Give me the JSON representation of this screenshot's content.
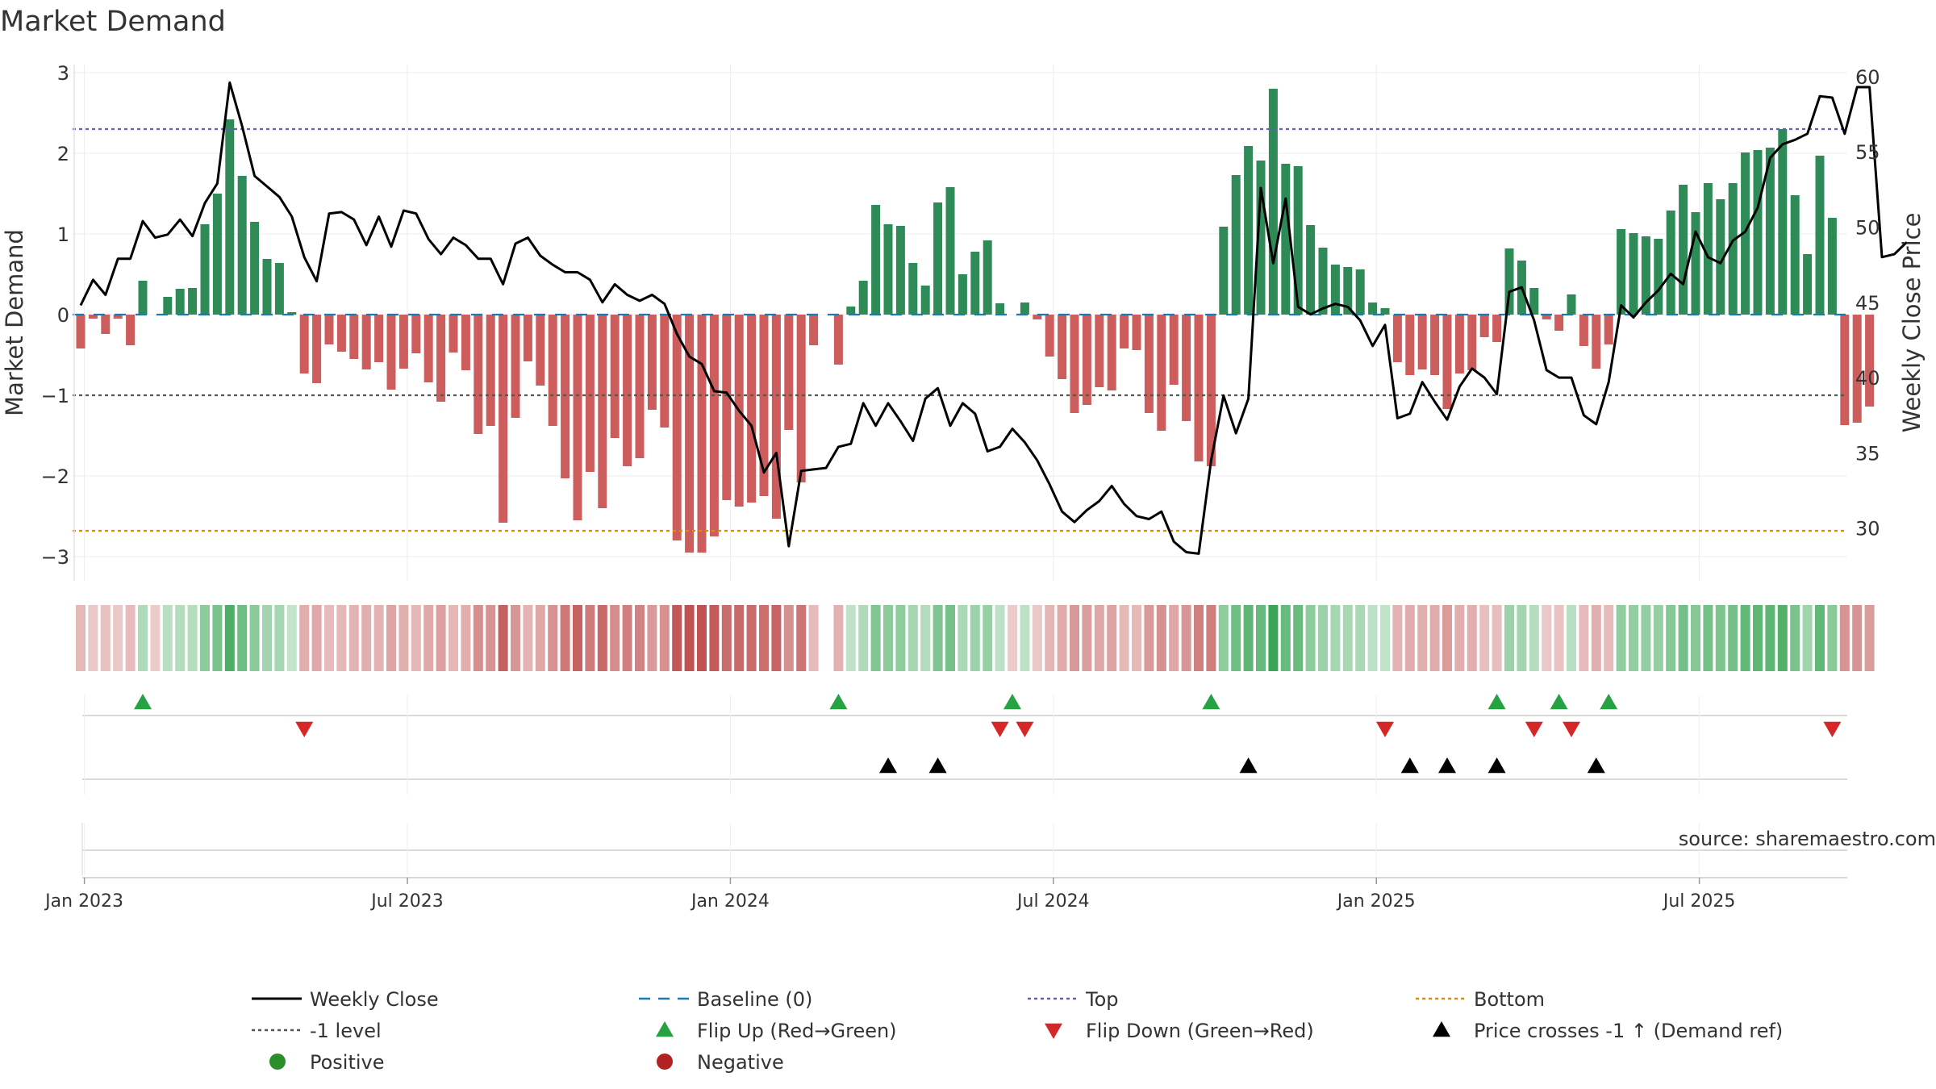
{
  "title": "Market Demand",
  "source": "source: sharemaestro.com",
  "chart_data": {
    "type": "bar+line",
    "title": "Market Demand",
    "ylabel_left": "Market Demand",
    "ylabel_right": "Weekly Close Price",
    "ylim_left": [
      -3.3,
      3.1
    ],
    "ylim_right": [
      26.5,
      60.8
    ],
    "yticks_left": [
      3,
      2,
      1,
      0,
      -1,
      -2,
      -3
    ],
    "ytick_labels_left": [
      "3",
      "2",
      "1",
      "0",
      "−1",
      "−2",
      "−3"
    ],
    "yticks_right": [
      60,
      55,
      50,
      45,
      40,
      35,
      30
    ],
    "ytick_labels_right": [
      "60",
      "55",
      "50",
      "45",
      "40",
      "35",
      "30"
    ],
    "xtick_labels": [
      "Jan 2023",
      "Jul 2023",
      "Jan 2024",
      "Jul 2024",
      "Jan 2025",
      "Jul 2025"
    ],
    "xtick_weeks": [
      0.3,
      26.3,
      52.3,
      78.3,
      104.3,
      130.3
    ],
    "levels": {
      "baseline": 0,
      "top": 2.3,
      "minus_one": -1,
      "bottom": -2.68
    },
    "colors": {
      "positive_bar": "#2e8b57",
      "negative_bar": "#cd5c5c",
      "price_line": "#000000",
      "baseline": "#1f77b4",
      "top": "#6a5acd",
      "minus_one": "#555555",
      "bottom": "#e08a00",
      "flip_up": "#27a243",
      "flip_down": "#d62728",
      "cross": "#000000",
      "positive_dot": "#2a8f2a",
      "negative_dot": "#b22222"
    },
    "demand": [
      -0.42,
      -0.05,
      -0.24,
      -0.05,
      -0.38,
      0.42,
      0.0,
      0.22,
      0.32,
      0.33,
      1.12,
      1.5,
      2.42,
      1.72,
      1.15,
      0.69,
      0.64,
      0.03,
      -0.73,
      -0.85,
      -0.37,
      -0.46,
      -0.55,
      -0.68,
      -0.59,
      -0.93,
      -0.67,
      -0.48,
      -0.84,
      -1.08,
      -0.47,
      -0.69,
      -1.48,
      -1.38,
      -2.58,
      -1.28,
      -0.58,
      -0.88,
      -1.38,
      -2.03,
      -2.55,
      -1.95,
      -2.4,
      -1.53,
      -1.88,
      -1.78,
      -1.18,
      -1.4,
      -2.8,
      -2.95,
      -2.95,
      -2.75,
      -2.3,
      -2.38,
      -2.33,
      -2.25,
      -2.53,
      -1.43,
      -2.08,
      -0.38,
      null,
      -0.62,
      0.1,
      0.42,
      1.36,
      1.12,
      1.1,
      0.64,
      0.36,
      1.39,
      1.58,
      0.5,
      0.78,
      0.92,
      0.14,
      0.0,
      0.15,
      -0.06,
      -0.52,
      -0.8,
      -1.22,
      -1.12,
      -0.9,
      -0.94,
      -0.42,
      -0.44,
      -1.22,
      -1.44,
      -0.87,
      -1.32,
      -1.82,
      -1.88,
      1.09,
      1.73,
      2.09,
      1.91,
      2.8,
      1.87,
      1.84,
      1.11,
      0.83,
      0.62,
      0.59,
      0.56,
      0.15,
      0.08,
      -0.59,
      -0.75,
      -0.68,
      -0.75,
      -1.17,
      -0.73,
      -0.69,
      -0.28,
      -0.34,
      0.82,
      0.67,
      0.33,
      -0.06,
      -0.2,
      0.25,
      -0.39,
      -0.67,
      -0.37,
      1.06,
      1.01,
      0.97,
      0.94,
      1.29,
      1.61,
      1.27,
      1.63,
      1.43,
      1.63,
      2.01,
      2.04,
      2.07,
      2.3,
      1.48,
      0.75,
      1.97,
      1.2,
      -1.37,
      -1.34,
      -1.14
    ],
    "close": [
      44.8,
      46.5,
      45.5,
      47.9,
      47.9,
      50.4,
      49.3,
      49.5,
      50.5,
      49.4,
      51.6,
      52.9,
      59.6,
      56.7,
      53.4,
      52.7,
      52.0,
      50.7,
      48.0,
      46.4,
      50.9,
      51.0,
      50.5,
      48.8,
      50.7,
      48.7,
      51.1,
      50.9,
      49.2,
      48.2,
      49.3,
      48.8,
      47.9,
      47.9,
      46.2,
      48.9,
      49.3,
      48.1,
      47.5,
      47.0,
      47.0,
      46.5,
      45.0,
      46.2,
      45.5,
      45.1,
      45.5,
      44.9,
      42.9,
      41.4,
      40.9,
      39.1,
      39.0,
      37.8,
      36.8,
      33.7,
      35.0,
      28.8,
      33.8,
      33.9,
      34.0,
      35.4,
      35.6,
      38.3,
      36.8,
      38.3,
      37.1,
      35.8,
      38.6,
      39.3,
      36.8,
      38.3,
      37.6,
      35.1,
      35.4,
      36.6,
      35.7,
      34.5,
      32.9,
      31.1,
      30.4,
      31.2,
      31.8,
      32.8,
      31.6,
      30.8,
      30.6,
      31.1,
      29.1,
      28.4,
      28.3,
      34.5,
      38.8,
      36.3,
      38.6,
      52.6,
      47.6,
      51.9,
      44.7,
      44.2,
      44.6,
      44.9,
      44.7,
      43.8,
      42.1,
      43.5,
      37.3,
      37.6,
      39.7,
      38.4,
      37.2,
      39.4,
      40.6,
      40.0,
      38.9,
      45.7,
      46.0,
      43.8,
      40.5,
      40.0,
      40.0,
      37.5,
      36.9,
      39.7,
      44.8,
      44.0,
      45.0,
      45.8,
      46.9,
      46.2,
      49.7,
      48.0,
      47.6,
      49.1,
      49.7,
      51.3,
      54.6,
      55.5,
      55.8,
      56.2,
      58.7,
      58.6,
      56.2,
      59.3,
      59.3,
      48.0,
      48.2,
      49.0
    ],
    "flip_up_weeks": [
      5,
      61,
      75,
      91,
      114,
      119,
      123
    ],
    "flip_down_weeks": [
      18,
      74,
      76,
      105,
      117,
      120,
      141
    ],
    "cross_weeks": [
      65,
      69,
      94,
      107,
      110,
      114,
      122
    ]
  },
  "legend": [
    {
      "key": "close",
      "label": "Weekly Close",
      "symbol": "line-solid",
      "color": "#000000"
    },
    {
      "key": "baseline",
      "label": "Baseline (0)",
      "symbol": "line-dash",
      "color": "#1f77b4"
    },
    {
      "key": "top",
      "label": "Top",
      "symbol": "line-dot",
      "color": "#6a5acd"
    },
    {
      "key": "bottom",
      "label": "Bottom",
      "symbol": "line-dot",
      "color": "#e08a00"
    },
    {
      "key": "minus_one",
      "label": "-1 level",
      "symbol": "line-dot",
      "color": "#555555"
    },
    {
      "key": "flip_up",
      "label": "Flip Up (Red→Green)",
      "symbol": "triangle-up",
      "color": "#27a243"
    },
    {
      "key": "flip_down",
      "label": "Flip Down (Green→Red)",
      "symbol": "triangle-down",
      "color": "#d62728"
    },
    {
      "key": "cross",
      "label": "Price crosses -1 ↑ (Demand ref)",
      "symbol": "triangle-up",
      "color": "#000000"
    },
    {
      "key": "positive",
      "label": "Positive",
      "symbol": "dot",
      "color": "#2a8f2a"
    },
    {
      "key": "negative",
      "label": "Negative",
      "symbol": "dot",
      "color": "#b22222"
    }
  ]
}
